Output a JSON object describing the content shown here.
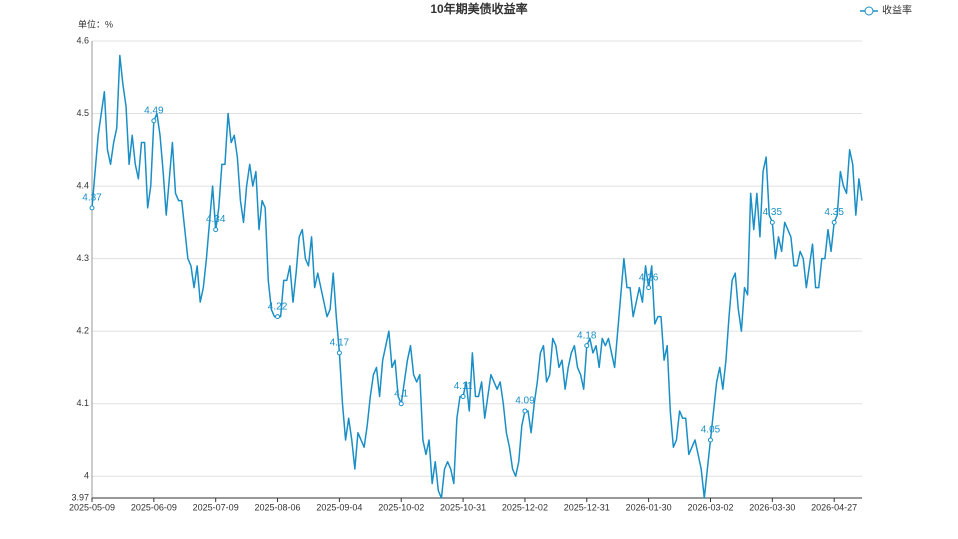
{
  "chart_data": {
    "type": "line",
    "title": "10年期美债收益率",
    "y_axis_label": "单位：%",
    "grid": true,
    "ylim": [
      3.97,
      4.6
    ],
    "yticks": [
      3.97,
      4,
      4.1,
      4.2,
      4.3,
      4.4,
      4.5,
      4.6
    ],
    "categories": [
      "2025-05-09",
      null,
      null,
      null,
      null,
      null,
      null,
      null,
      null,
      null,
      null,
      null,
      null,
      null,
      null,
      null,
      null,
      null,
      null,
      null,
      "2025-06-09",
      null,
      null,
      null,
      null,
      null,
      null,
      null,
      null,
      null,
      null,
      null,
      null,
      null,
      null,
      null,
      null,
      null,
      null,
      null,
      "2025-07-09",
      null,
      null,
      null,
      null,
      null,
      null,
      null,
      null,
      null,
      null,
      null,
      null,
      null,
      null,
      null,
      null,
      null,
      null,
      null,
      "2025-08-06",
      null,
      null,
      null,
      null,
      null,
      null,
      null,
      null,
      null,
      null,
      null,
      null,
      null,
      null,
      null,
      null,
      null,
      null,
      null,
      "2025-09-04",
      null,
      null,
      null,
      null,
      null,
      null,
      null,
      null,
      null,
      null,
      null,
      null,
      null,
      null,
      null,
      null,
      null,
      null,
      null,
      "2025-10-02",
      null,
      null,
      null,
      null,
      null,
      null,
      null,
      null,
      null,
      null,
      null,
      null,
      null,
      null,
      null,
      null,
      null,
      null,
      null,
      "2025-10-31",
      null,
      null,
      null,
      null,
      null,
      null,
      null,
      null,
      null,
      null,
      null,
      null,
      null,
      null,
      null,
      null,
      null,
      null,
      null,
      "2025-12-02",
      null,
      null,
      null,
      null,
      null,
      null,
      null,
      null,
      null,
      null,
      null,
      null,
      null,
      null,
      null,
      null,
      null,
      null,
      null,
      "2025-12-31",
      null,
      null,
      null,
      null,
      null,
      null,
      null,
      null,
      null,
      null,
      null,
      null,
      null,
      null,
      null,
      null,
      null,
      null,
      null,
      "2026-01-30",
      null,
      null,
      null,
      null,
      null,
      null,
      null,
      null,
      null,
      null,
      null,
      null,
      null,
      null,
      null,
      null,
      null,
      null,
      null,
      "2026-03-02",
      null,
      null,
      null,
      null,
      null,
      null,
      null,
      null,
      null,
      null,
      null,
      null,
      null,
      null,
      null,
      null,
      null,
      null,
      null,
      "2026-03-30",
      null,
      null,
      null,
      null,
      null,
      null,
      null,
      null,
      null,
      null,
      null,
      null,
      null,
      null,
      null,
      null,
      null,
      null,
      null,
      "2026-04-27",
      null,
      null,
      null,
      null,
      null,
      null,
      null,
      null,
      null
    ],
    "series": [
      {
        "name": "收益率",
        "color": "#1a8fc6",
        "values": [
          4.37,
          4.42,
          4.47,
          4.5,
          4.53,
          4.45,
          4.43,
          4.46,
          4.48,
          4.58,
          4.54,
          4.51,
          4.43,
          4.47,
          4.43,
          4.41,
          4.46,
          4.46,
          4.37,
          4.4,
          4.49,
          4.5,
          4.47,
          4.42,
          4.36,
          4.41,
          4.46,
          4.39,
          4.38,
          4.38,
          4.34,
          4.3,
          4.29,
          4.26,
          4.29,
          4.24,
          4.26,
          4.3,
          4.35,
          4.4,
          4.34,
          4.37,
          4.43,
          4.43,
          4.5,
          4.46,
          4.47,
          4.44,
          4.38,
          4.35,
          4.4,
          4.43,
          4.4,
          4.42,
          4.34,
          4.38,
          4.37,
          4.27,
          4.23,
          4.22,
          4.22,
          4.22,
          4.27,
          4.27,
          4.29,
          4.24,
          4.28,
          4.33,
          4.34,
          4.3,
          4.29,
          4.33,
          4.26,
          4.28,
          4.26,
          4.24,
          4.22,
          4.23,
          4.28,
          4.22,
          4.17,
          4.1,
          4.05,
          4.08,
          4.05,
          4.01,
          4.06,
          4.05,
          4.04,
          4.07,
          4.11,
          4.14,
          4.15,
          4.11,
          4.16,
          4.18,
          4.2,
          4.15,
          4.16,
          4.11,
          4.1,
          4.13,
          4.16,
          4.18,
          4.14,
          4.13,
          4.14,
          4.05,
          4.03,
          4.05,
          3.99,
          4.02,
          3.98,
          3.97,
          4.01,
          4.02,
          4.01,
          3.99,
          4.08,
          4.11,
          4.11,
          4.13,
          4.09,
          4.17,
          4.11,
          4.11,
          4.13,
          4.08,
          4.11,
          4.14,
          4.13,
          4.12,
          4.13,
          4.1,
          4.06,
          4.04,
          4.01,
          4,
          4.02,
          4.07,
          4.09,
          4.09,
          4.06,
          4.1,
          4.13,
          4.17,
          4.18,
          4.13,
          4.14,
          4.19,
          4.18,
          4.15,
          4.16,
          4.12,
          4.15,
          4.17,
          4.18,
          4.15,
          4.14,
          4.12,
          4.18,
          4.19,
          4.17,
          4.18,
          4.15,
          4.19,
          4.18,
          4.19,
          4.17,
          4.15,
          4.2,
          4.25,
          4.3,
          4.26,
          4.26,
          4.22,
          4.24,
          4.26,
          4.24,
          4.29,
          4.26,
          4.29,
          4.21,
          4.22,
          4.22,
          4.16,
          4.18,
          4.09,
          4.04,
          4.05,
          4.09,
          4.08,
          4.08,
          4.03,
          4.04,
          4.05,
          4.03,
          4.01,
          3.97,
          4.01,
          4.05,
          4.09,
          4.13,
          4.15,
          4.12,
          4.16,
          4.22,
          4.27,
          4.28,
          4.23,
          4.2,
          4.26,
          4.25,
          4.39,
          4.34,
          4.39,
          4.33,
          4.42,
          4.44,
          4.36,
          4.35,
          4.3,
          4.33,
          4.31,
          4.35,
          4.34,
          4.33,
          4.29,
          4.29,
          4.31,
          4.3,
          4.26,
          4.29,
          4.32,
          4.26,
          4.26,
          4.3,
          4.3,
          4.34,
          4.31,
          4.35,
          4.36,
          4.42,
          4.4,
          4.39,
          4.45,
          4.43,
          4.36,
          4.41,
          4.38
        ]
      }
    ]
  }
}
